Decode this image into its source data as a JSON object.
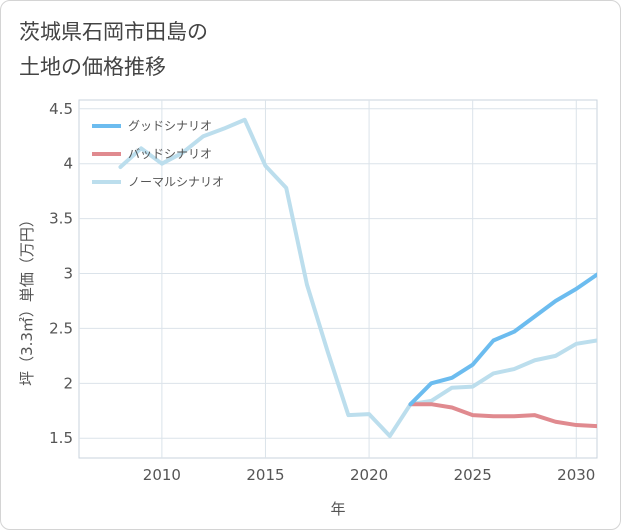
{
  "title": {
    "line1": "茨城県石岡市田島の",
    "line2": "土地の価格推移"
  },
  "chart_data": {
    "type": "line",
    "xlabel": "年",
    "ylabel": "坪（3.3㎡）単価（万円）",
    "xlim": [
      2006,
      2031
    ],
    "ylim": [
      1.32,
      4.58
    ],
    "x_ticks": [
      2010,
      2015,
      2020,
      2025,
      2030
    ],
    "y_ticks": [
      1.5,
      2,
      2.5,
      3,
      3.5,
      4,
      4.5
    ],
    "grid": true,
    "legend_position": "top-left",
    "series": [
      {
        "name": "グッドシナリオ",
        "color": "#6cbcef",
        "x": [
          2022,
          2023,
          2024,
          2025,
          2026,
          2027,
          2028,
          2029,
          2030,
          2031
        ],
        "y": [
          1.81,
          2.0,
          2.05,
          2.17,
          2.39,
          2.47,
          2.61,
          2.75,
          2.86,
          2.99
        ]
      },
      {
        "name": "バッドシナリオ",
        "color": "#e08a8f",
        "x": [
          2022,
          2023,
          2024,
          2025,
          2026,
          2027,
          2028,
          2029,
          2030,
          2031
        ],
        "y": [
          1.81,
          1.81,
          1.78,
          1.71,
          1.7,
          1.7,
          1.71,
          1.65,
          1.62,
          1.61
        ]
      },
      {
        "name": "ノーマルシナリオ",
        "color": "#bcdeed",
        "x": [
          2008,
          2009,
          2010,
          2011,
          2012,
          2013,
          2014,
          2015,
          2016,
          2017,
          2018,
          2019,
          2020,
          2021,
          2022,
          2023,
          2024,
          2025,
          2026,
          2027,
          2028,
          2029,
          2030,
          2031
        ],
        "y": [
          3.97,
          4.14,
          4.0,
          4.1,
          4.25,
          4.32,
          4.4,
          3.98,
          3.78,
          2.9,
          2.29,
          1.71,
          1.72,
          1.52,
          1.81,
          1.84,
          1.96,
          1.97,
          2.09,
          2.13,
          2.21,
          2.25,
          2.36,
          2.39
        ]
      }
    ]
  }
}
